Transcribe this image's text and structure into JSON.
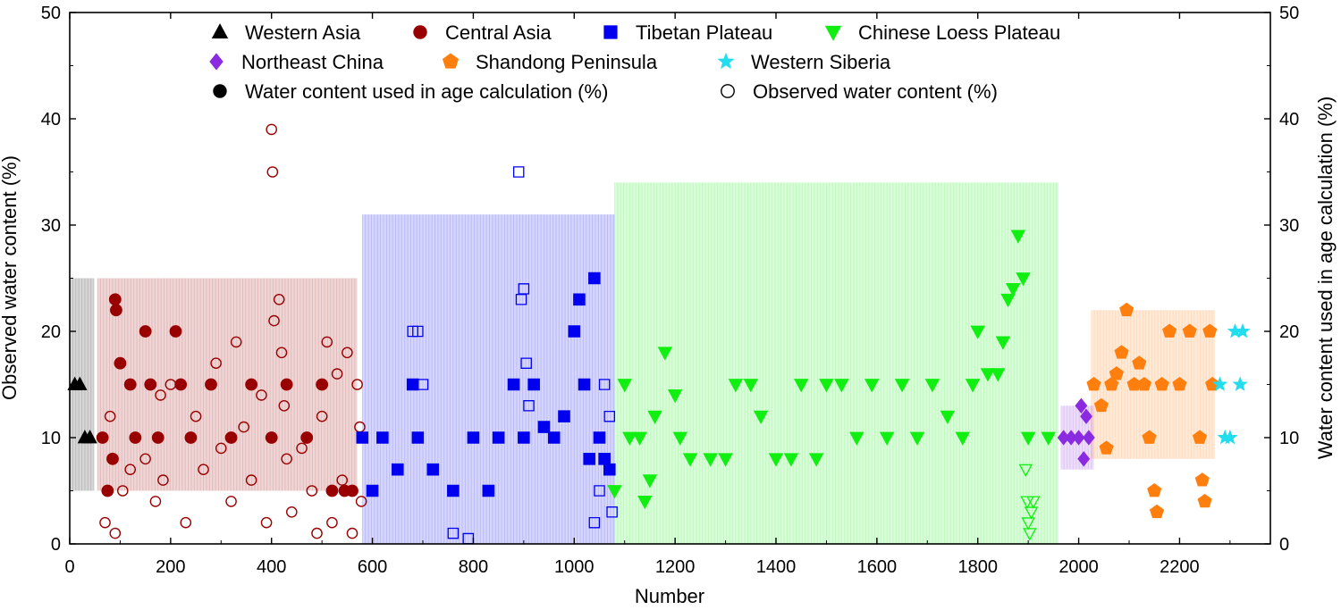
{
  "chart_data": {
    "type": "scatter",
    "title": "",
    "xlabel": "Number",
    "ylabel_left": "Observed water content (%)",
    "ylabel_right": "Water content used in age calculation (%)",
    "xlim": [
      0,
      2380
    ],
    "ylim": [
      0,
      50
    ],
    "xticks": [
      0,
      200,
      400,
      600,
      800,
      1000,
      1200,
      1400,
      1600,
      1800,
      2000,
      2200
    ],
    "yticks": [
      0,
      10,
      20,
      30,
      40,
      50
    ],
    "legend": {
      "placement": "top-center",
      "entries": [
        {
          "label": "Western Asia",
          "marker": "triangle-up",
          "color": "#000000"
        },
        {
          "label": "Central Asia",
          "marker": "circle",
          "color": "#990000"
        },
        {
          "label": "Tibetan Plateau",
          "marker": "square",
          "color": "#0000ee"
        },
        {
          "label": "Chinese Loess Plateau",
          "marker": "triangle-down",
          "color": "#11ee11"
        },
        {
          "label": "Northeast China",
          "marker": "diamond",
          "color": "#8a2be2"
        },
        {
          "label": "Shandong Peninsula",
          "marker": "pentagon",
          "color": "#ff7f0e"
        },
        {
          "label": "Western Siberia",
          "marker": "star",
          "color": "#22ddee"
        },
        {
          "label": "Water content used in age calculation (%)",
          "marker": "circle",
          "color": "#000000"
        },
        {
          "label": "Observed water content (%)",
          "marker": "circle-open",
          "color": "#000000"
        }
      ]
    },
    "series": [
      {
        "name": "Western Asia",
        "marker": "triangle-up",
        "color": "#000000",
        "used": [
          [
            10,
            15
          ],
          [
            20,
            15
          ],
          [
            30,
            10
          ],
          [
            40,
            10
          ]
        ],
        "observed": [],
        "band": [
          0,
          48,
          5,
          25
        ]
      },
      {
        "name": "Central Asia",
        "marker": "circle",
        "color": "#990000",
        "used": [
          [
            65,
            10
          ],
          [
            75,
            5
          ],
          [
            85,
            8
          ],
          [
            90,
            23
          ],
          [
            92,
            22
          ],
          [
            100,
            17
          ],
          [
            120,
            15
          ],
          [
            130,
            10
          ],
          [
            150,
            20
          ],
          [
            160,
            15
          ],
          [
            175,
            10
          ],
          [
            210,
            20
          ],
          [
            220,
            15
          ],
          [
            240,
            10
          ],
          [
            280,
            15
          ],
          [
            320,
            10
          ],
          [
            360,
            15
          ],
          [
            400,
            10
          ],
          [
            430,
            15
          ],
          [
            470,
            10
          ],
          [
            500,
            15
          ],
          [
            520,
            5
          ],
          [
            545,
            5
          ],
          [
            560,
            5
          ]
        ],
        "observed": [
          [
            70,
            2
          ],
          [
            80,
            12
          ],
          [
            90,
            1
          ],
          [
            105,
            5
          ],
          [
            120,
            7
          ],
          [
            150,
            8
          ],
          [
            170,
            4
          ],
          [
            180,
            14
          ],
          [
            185,
            6
          ],
          [
            200,
            15
          ],
          [
            230,
            2
          ],
          [
            250,
            12
          ],
          [
            265,
            7
          ],
          [
            290,
            17
          ],
          [
            300,
            9
          ],
          [
            320,
            4
          ],
          [
            330,
            19
          ],
          [
            345,
            11
          ],
          [
            360,
            6
          ],
          [
            380,
            14
          ],
          [
            390,
            2
          ],
          [
            400,
            39
          ],
          [
            402,
            35
          ],
          [
            405,
            21
          ],
          [
            415,
            23
          ],
          [
            420,
            18
          ],
          [
            425,
            13
          ],
          [
            430,
            8
          ],
          [
            440,
            3
          ],
          [
            460,
            9
          ],
          [
            480,
            5
          ],
          [
            490,
            1
          ],
          [
            500,
            12
          ],
          [
            510,
            19
          ],
          [
            520,
            2
          ],
          [
            530,
            16
          ],
          [
            540,
            6
          ],
          [
            550,
            18
          ],
          [
            560,
            1
          ],
          [
            570,
            15
          ],
          [
            575,
            11
          ],
          [
            578,
            4
          ]
        ],
        "band": [
          55,
          570,
          5,
          25
        ]
      },
      {
        "name": "Tibetan Plateau",
        "marker": "square",
        "color": "#0000ee",
        "used": [
          [
            580,
            10
          ],
          [
            600,
            5
          ],
          [
            620,
            10
          ],
          [
            650,
            7
          ],
          [
            680,
            15
          ],
          [
            690,
            10
          ],
          [
            720,
            7
          ],
          [
            760,
            5
          ],
          [
            800,
            10
          ],
          [
            830,
            5
          ],
          [
            850,
            10
          ],
          [
            880,
            15
          ],
          [
            900,
            10
          ],
          [
            920,
            15
          ],
          [
            940,
            11
          ],
          [
            960,
            10
          ],
          [
            980,
            12
          ],
          [
            1000,
            20
          ],
          [
            1010,
            23
          ],
          [
            1020,
            15
          ],
          [
            1030,
            8
          ],
          [
            1040,
            25
          ],
          [
            1050,
            10
          ],
          [
            1060,
            8
          ],
          [
            1070,
            7
          ]
        ],
        "observed": [
          [
            680,
            20
          ],
          [
            690,
            20
          ],
          [
            700,
            15
          ],
          [
            760,
            1
          ],
          [
            790,
            0.5
          ],
          [
            890,
            35
          ],
          [
            895,
            23
          ],
          [
            900,
            24
          ],
          [
            905,
            17
          ],
          [
            910,
            13
          ],
          [
            920,
            15
          ],
          [
            1040,
            2
          ],
          [
            1050,
            5
          ],
          [
            1060,
            15
          ],
          [
            1070,
            12
          ],
          [
            1075,
            3
          ]
        ],
        "band": [
          580,
          1080,
          0,
          31
        ]
      },
      {
        "name": "Chinese Loess Plateau",
        "marker": "triangle-down",
        "color": "#11ee11",
        "used": [
          [
            1080,
            5
          ],
          [
            1100,
            15
          ],
          [
            1110,
            10
          ],
          [
            1130,
            10
          ],
          [
            1140,
            4
          ],
          [
            1150,
            6
          ],
          [
            1160,
            12
          ],
          [
            1180,
            18
          ],
          [
            1200,
            14
          ],
          [
            1210,
            10
          ],
          [
            1230,
            8
          ],
          [
            1270,
            8
          ],
          [
            1300,
            8
          ],
          [
            1320,
            15
          ],
          [
            1350,
            15
          ],
          [
            1370,
            12
          ],
          [
            1400,
            8
          ],
          [
            1430,
            8
          ],
          [
            1450,
            15
          ],
          [
            1480,
            8
          ],
          [
            1500,
            15
          ],
          [
            1530,
            15
          ],
          [
            1560,
            10
          ],
          [
            1590,
            15
          ],
          [
            1620,
            10
          ],
          [
            1650,
            15
          ],
          [
            1680,
            10
          ],
          [
            1710,
            15
          ],
          [
            1740,
            12
          ],
          [
            1770,
            10
          ],
          [
            1790,
            15
          ],
          [
            1800,
            20
          ],
          [
            1820,
            16
          ],
          [
            1840,
            16
          ],
          [
            1850,
            19
          ],
          [
            1860,
            23
          ],
          [
            1870,
            24
          ],
          [
            1880,
            29
          ],
          [
            1890,
            25
          ],
          [
            1900,
            10
          ],
          [
            1940,
            10
          ]
        ],
        "observed": [
          [
            1895,
            7
          ],
          [
            1898,
            4
          ],
          [
            1900,
            2
          ],
          [
            1903,
            1
          ],
          [
            1906,
            3
          ],
          [
            1910,
            4
          ]
        ],
        "band": [
          1080,
          1960,
          0,
          34
        ]
      },
      {
        "name": "Northeast China",
        "marker": "diamond",
        "color": "#8a2be2",
        "used": [
          [
            1970,
            10
          ],
          [
            1985,
            10
          ],
          [
            2000,
            10
          ],
          [
            2005,
            13
          ],
          [
            2010,
            8
          ],
          [
            2015,
            12
          ],
          [
            2020,
            10
          ]
        ],
        "observed": [],
        "band": [
          1965,
          2030,
          7,
          13
        ]
      },
      {
        "name": "Shandong Peninsula",
        "marker": "pentagon",
        "color": "#ff7f0e",
        "used": [
          [
            2030,
            15
          ],
          [
            2045,
            13
          ],
          [
            2055,
            9
          ],
          [
            2065,
            15
          ],
          [
            2075,
            16
          ],
          [
            2085,
            18
          ],
          [
            2095,
            22
          ],
          [
            2110,
            15
          ],
          [
            2120,
            17
          ],
          [
            2130,
            15
          ],
          [
            2140,
            10
          ],
          [
            2150,
            5
          ],
          [
            2155,
            3
          ],
          [
            2165,
            15
          ],
          [
            2180,
            20
          ],
          [
            2200,
            15
          ],
          [
            2220,
            20
          ],
          [
            2240,
            10
          ],
          [
            2245,
            6
          ],
          [
            2250,
            4
          ],
          [
            2260,
            20
          ],
          [
            2265,
            15
          ]
        ],
        "observed": [],
        "band": [
          2025,
          2270,
          8,
          22
        ]
      },
      {
        "name": "Western Siberia",
        "marker": "star",
        "color": "#22ddee",
        "used": [
          [
            2280,
            15
          ],
          [
            2290,
            10
          ],
          [
            2300,
            10
          ],
          [
            2310,
            20
          ],
          [
            2320,
            15
          ],
          [
            2325,
            20
          ]
        ],
        "observed": [],
        "band": null
      }
    ]
  }
}
